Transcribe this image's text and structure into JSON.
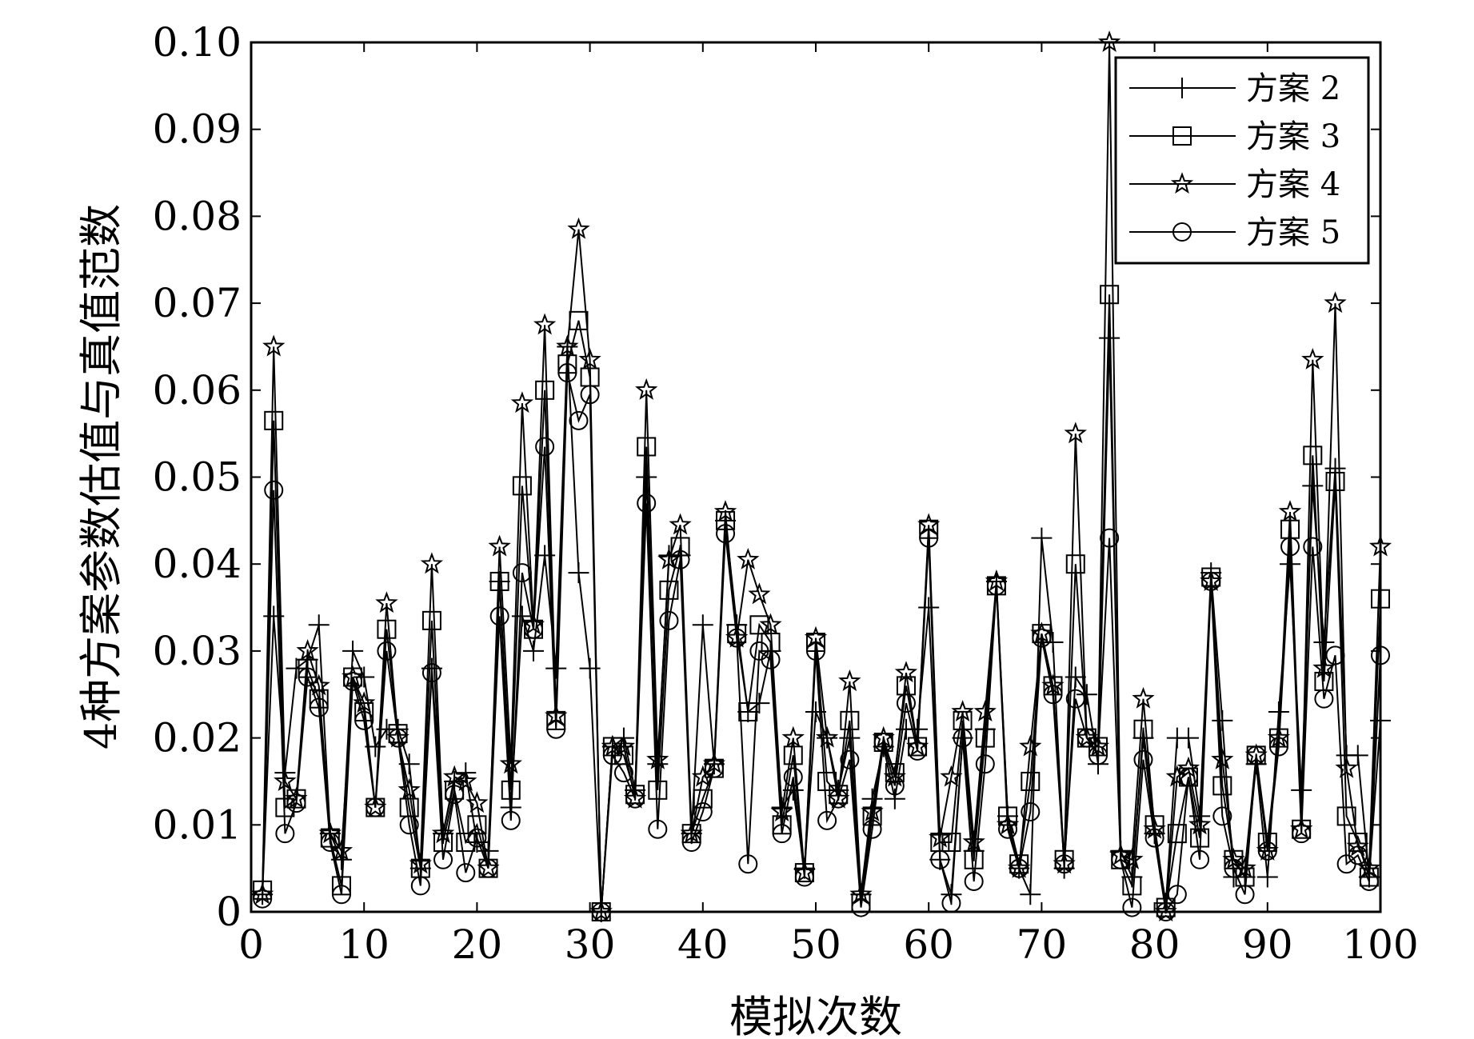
{
  "chart_data": {
    "type": "line",
    "title": "",
    "xlabel": "模拟次数",
    "ylabel": "4种方案参数估值与真值范数",
    "xlim": [
      0,
      100
    ],
    "ylim": [
      0,
      0.1
    ],
    "xticks": [
      0,
      10,
      20,
      30,
      40,
      50,
      60,
      70,
      80,
      90,
      100
    ],
    "xtick_labels": [
      "0",
      "10",
      "20",
      "30",
      "40",
      "50",
      "60",
      "70",
      "80",
      "90",
      "100"
    ],
    "yticks": [
      0,
      0.01,
      0.02,
      0.03,
      0.04,
      0.05,
      0.06,
      0.07,
      0.08,
      0.09,
      0.1
    ],
    "ytick_labels": [
      "0",
      "0.01",
      "0.02",
      "0.03",
      "0.04",
      "0.05",
      "0.06",
      "0.07",
      "0.08",
      "0.09",
      "0.10"
    ],
    "grid": false,
    "legend_position": "top-right",
    "x": [
      1,
      2,
      3,
      4,
      5,
      6,
      7,
      8,
      9,
      10,
      11,
      12,
      13,
      14,
      15,
      16,
      17,
      18,
      19,
      20,
      21,
      22,
      23,
      24,
      25,
      26,
      27,
      28,
      29,
      30,
      31,
      32,
      33,
      34,
      35,
      36,
      37,
      38,
      39,
      40,
      41,
      42,
      43,
      44,
      45,
      46,
      47,
      48,
      49,
      50,
      51,
      52,
      53,
      54,
      55,
      56,
      57,
      58,
      59,
      60,
      61,
      62,
      63,
      64,
      65,
      66,
      67,
      68,
      69,
      70,
      71,
      72,
      73,
      74,
      75,
      76,
      77,
      78,
      79,
      80,
      81,
      82,
      83,
      84,
      85,
      86,
      87,
      88,
      89,
      90,
      91,
      92,
      93,
      94,
      95,
      96,
      97,
      98,
      99,
      100
    ],
    "series": [
      {
        "name": "方案 2",
        "marker": "plus",
        "values": [
          0.002,
          0.034,
          0.016,
          0.028,
          0.029,
          0.033,
          0.009,
          0.006,
          0.03,
          0.027,
          0.019,
          0.021,
          0.021,
          0.017,
          0.005,
          0.028,
          0.009,
          0.015,
          0.016,
          0.008,
          0.007,
          0.038,
          0.012,
          0.034,
          0.03,
          0.041,
          0.028,
          0.065,
          0.039,
          0.028,
          0.0,
          0.019,
          0.02,
          0.014,
          0.05,
          0.017,
          0.041,
          0.041,
          0.009,
          0.033,
          0.017,
          0.045,
          0.033,
          0.023,
          0.024,
          0.03,
          0.012,
          0.014,
          0.005,
          0.023,
          0.02,
          0.014,
          0.02,
          0.002,
          0.013,
          0.019,
          0.013,
          0.021,
          0.021,
          0.035,
          0.006,
          0.002,
          0.02,
          0.007,
          0.021,
          0.038,
          0.011,
          0.005,
          0.002,
          0.043,
          0.031,
          0.005,
          0.027,
          0.025,
          0.017,
          0.066,
          0.007,
          0.004,
          0.02,
          0.009,
          0.001,
          0.02,
          0.02,
          0.011,
          0.039,
          0.022,
          0.004,
          0.004,
          0.017,
          0.004,
          0.023,
          0.04,
          0.014,
          0.049,
          0.031,
          0.051,
          0.018,
          0.018,
          0.004,
          0.022
        ]
      },
      {
        "name": "方案 3",
        "marker": "square",
        "values": [
          0.0025,
          0.0565,
          0.012,
          0.013,
          0.028,
          0.0245,
          0.0085,
          0.003,
          0.027,
          0.023,
          0.012,
          0.0325,
          0.0205,
          0.012,
          0.005,
          0.0335,
          0.008,
          0.014,
          0.008,
          0.01,
          0.005,
          0.038,
          0.014,
          0.049,
          0.0325,
          0.06,
          0.022,
          0.063,
          0.068,
          0.0615,
          0.0,
          0.019,
          0.018,
          0.0135,
          0.0535,
          0.014,
          0.037,
          0.042,
          0.009,
          0.013,
          0.0165,
          0.045,
          0.032,
          0.023,
          0.033,
          0.031,
          0.01,
          0.018,
          0.0045,
          0.031,
          0.015,
          0.0135,
          0.022,
          0.001,
          0.011,
          0.0195,
          0.016,
          0.026,
          0.019,
          0.044,
          0.008,
          0.008,
          0.022,
          0.006,
          0.02,
          0.0375,
          0.011,
          0.0055,
          0.015,
          0.032,
          0.026,
          0.006,
          0.04,
          0.02,
          0.019,
          0.071,
          0.006,
          0.003,
          0.021,
          0.01,
          0.0005,
          0.009,
          0.0155,
          0.0085,
          0.0385,
          0.0145,
          0.006,
          0.004,
          0.018,
          0.008,
          0.02,
          0.044,
          0.0095,
          0.0525,
          0.0265,
          0.0495,
          0.011,
          0.008,
          0.004,
          0.036
        ]
      },
      {
        "name": "方案 4",
        "marker": "star",
        "values": [
          0.002,
          0.065,
          0.015,
          0.013,
          0.03,
          0.026,
          0.009,
          0.007,
          0.027,
          0.024,
          0.012,
          0.0355,
          0.02,
          0.014,
          0.0055,
          0.04,
          0.009,
          0.0155,
          0.015,
          0.0125,
          0.005,
          0.042,
          0.017,
          0.0585,
          0.033,
          0.0675,
          0.0225,
          0.065,
          0.0785,
          0.0635,
          0.0,
          0.019,
          0.019,
          0.013,
          0.06,
          0.0175,
          0.0405,
          0.0445,
          0.009,
          0.0155,
          0.017,
          0.046,
          0.0315,
          0.0405,
          0.0365,
          0.033,
          0.0115,
          0.02,
          0.0045,
          0.0315,
          0.02,
          0.013,
          0.0265,
          0.002,
          0.0115,
          0.02,
          0.0155,
          0.0275,
          0.019,
          0.0445,
          0.0085,
          0.0155,
          0.023,
          0.008,
          0.023,
          0.038,
          0.01,
          0.005,
          0.019,
          0.032,
          0.026,
          0.0055,
          0.055,
          0.02,
          0.019,
          0.1,
          0.0065,
          0.006,
          0.0245,
          0.0095,
          0.0,
          0.0155,
          0.0165,
          0.01,
          0.038,
          0.0175,
          0.006,
          0.005,
          0.018,
          0.007,
          0.02,
          0.046,
          0.0095,
          0.0635,
          0.028,
          0.07,
          0.0165,
          0.0075,
          0.005,
          0.042
        ]
      },
      {
        "name": "方案 5",
        "marker": "circle",
        "values": [
          0.0015,
          0.0485,
          0.009,
          0.0125,
          0.027,
          0.0235,
          0.008,
          0.002,
          0.0265,
          0.022,
          0.012,
          0.03,
          0.02,
          0.01,
          0.003,
          0.0275,
          0.006,
          0.0135,
          0.0045,
          0.0085,
          0.005,
          0.034,
          0.0105,
          0.039,
          0.0325,
          0.0535,
          0.021,
          0.062,
          0.0565,
          0.0595,
          0.0,
          0.018,
          0.016,
          0.013,
          0.047,
          0.0095,
          0.0335,
          0.0405,
          0.008,
          0.0115,
          0.0165,
          0.0435,
          0.0315,
          0.0055,
          0.03,
          0.029,
          0.009,
          0.0155,
          0.004,
          0.03,
          0.0105,
          0.013,
          0.0175,
          0.0005,
          0.0095,
          0.0195,
          0.0145,
          0.024,
          0.0185,
          0.043,
          0.006,
          0.001,
          0.02,
          0.0035,
          0.017,
          0.0375,
          0.0095,
          0.005,
          0.0115,
          0.0315,
          0.025,
          0.0055,
          0.0245,
          0.02,
          0.018,
          0.043,
          0.006,
          0.0005,
          0.0175,
          0.0085,
          0.0,
          0.002,
          0.0155,
          0.006,
          0.038,
          0.011,
          0.005,
          0.002,
          0.018,
          0.007,
          0.019,
          0.042,
          0.009,
          0.042,
          0.0245,
          0.0295,
          0.0055,
          0.0065,
          0.0035,
          0.0295
        ]
      }
    ]
  }
}
